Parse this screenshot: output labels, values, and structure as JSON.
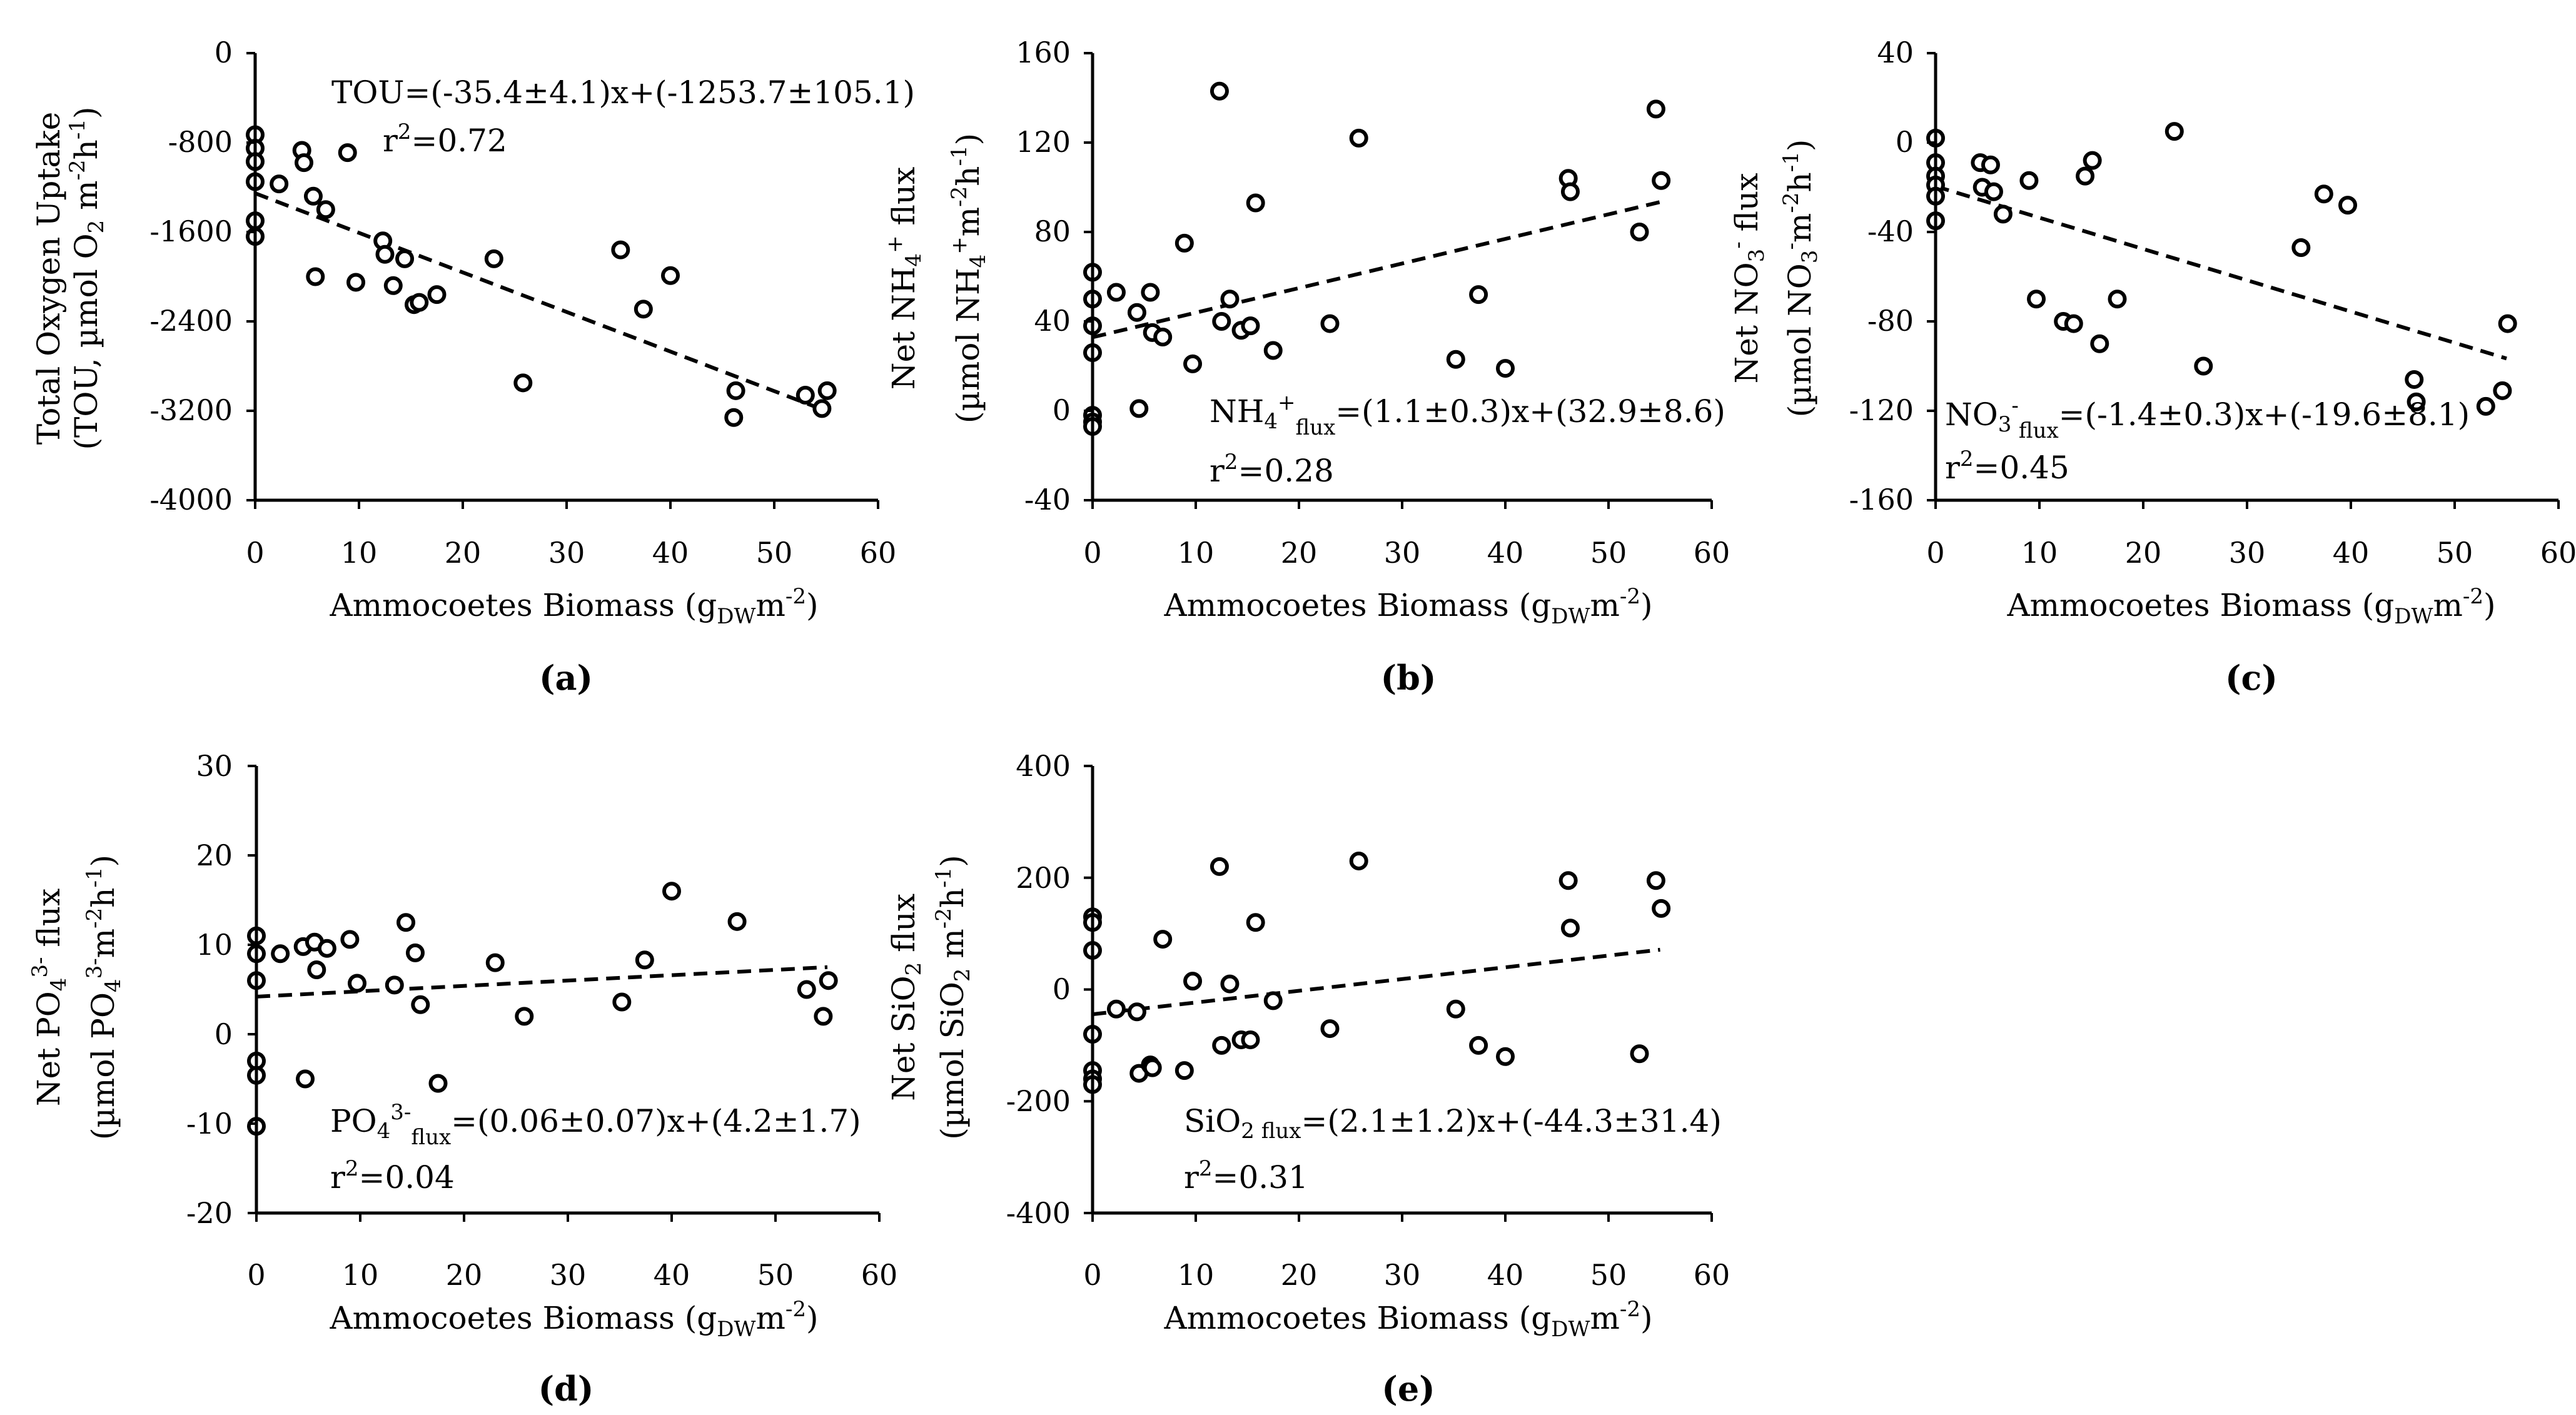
{
  "chart_data": [
    {
      "panel": "(a)",
      "type": "scatter",
      "xlabel": "Ammocoetes Biomass (gDWm-2)",
      "ylabel_line1": "Total Oxygen Uptake",
      "ylabel_line2": "(TOU, µmol O2 m-2h-1)",
      "xlim": [
        0,
        60
      ],
      "ylim": [
        -4000,
        0
      ],
      "xticks": [
        0,
        10,
        20,
        30,
        40,
        50,
        60
      ],
      "yticks": [
        0,
        -800,
        -1600,
        -2400,
        -3200,
        -4000
      ],
      "x": [
        0,
        0,
        0,
        0,
        0,
        0,
        2.3,
        4.5,
        4.7,
        5.6,
        5.8,
        6.8,
        8.9,
        9.7,
        12.3,
        12.5,
        13.3,
        14.4,
        15.3,
        15.8,
        17.5,
        23,
        25.8,
        35.2,
        37.4,
        40,
        46.1,
        46.3,
        53,
        54.6,
        55.1
      ],
      "y": [
        -730,
        -850,
        -970,
        -1150,
        -1500,
        -1640,
        -1170,
        -870,
        -980,
        -1280,
        -2000,
        -1400,
        -890,
        -2050,
        -1680,
        -1800,
        -2080,
        -1840,
        -2250,
        -2230,
        -2160,
        -1840,
        -2950,
        -1760,
        -2290,
        -1990,
        -3260,
        -3020,
        -3060,
        -3180,
        -3020
      ],
      "fit": {
        "slope": -35.4,
        "intercept": -1253.7,
        "x_range": [
          0,
          55
        ]
      },
      "equation": "TOU=(-35.4±4.1)x+(-1253.7±105.1)",
      "r2": "=0.72"
    },
    {
      "panel": "(b)",
      "type": "scatter",
      "xlabel": "Ammocoetes Biomass (gDWm-2)",
      "ylabel_line1": "Net NH4+ flux",
      "ylabel_line2": "(µmol NH4+m-2h-1)",
      "xlim": [
        0,
        60
      ],
      "ylim": [
        -40,
        160
      ],
      "xticks": [
        0,
        10,
        20,
        30,
        40,
        50,
        60
      ],
      "yticks": [
        160,
        120,
        80,
        40,
        0,
        -40
      ],
      "x": [
        0,
        0,
        0,
        0,
        0,
        0,
        0,
        2.3,
        4.3,
        4.5,
        5.6,
        5.8,
        6.8,
        8.9,
        9.7,
        12.3,
        12.5,
        13.3,
        14.4,
        15.3,
        15.8,
        17.5,
        23,
        25.8,
        35.2,
        37.4,
        40,
        46.1,
        46.3,
        53,
        54.6,
        55.1
      ],
      "y": [
        62,
        50,
        38,
        26,
        -2,
        -5,
        -7,
        53,
        44,
        1,
        53,
        35,
        33,
        75,
        21,
        143,
        40,
        50,
        36,
        38,
        93,
        27,
        39,
        122,
        23,
        52,
        19,
        104,
        98,
        80,
        135,
        103
      ],
      "fit": {
        "slope": 1.1,
        "intercept": 32.9,
        "x_range": [
          0,
          55
        ]
      },
      "equation": "NH4+flux=(1.1±0.3)x+(32.9±8.6)",
      "r2": "=0.28"
    },
    {
      "panel": "(c)",
      "type": "scatter",
      "xlabel": "Ammocoetes Biomass (gDWm-2)",
      "ylabel_line1": "Net NO3- flux",
      "ylabel_line2": "(µmol NO3-m-2h-1)",
      "xlim": [
        0,
        60
      ],
      "ylim": [
        -160,
        40
      ],
      "xticks": [
        0,
        10,
        20,
        30,
        40,
        50,
        60
      ],
      "yticks": [
        40,
        0,
        -40,
        -80,
        -120,
        -160
      ],
      "x": [
        0,
        0,
        0,
        0,
        0,
        0,
        4.3,
        4.5,
        5.3,
        5.6,
        6.5,
        9,
        9.7,
        12.3,
        13.3,
        14.4,
        15.1,
        15.8,
        17.5,
        23,
        25.8,
        35.2,
        37.4,
        39.7,
        46.1,
        46.3,
        53,
        54.6,
        55.1
      ],
      "y": [
        2,
        -9,
        -15,
        -19,
        -24,
        -35,
        -9,
        -20,
        -10,
        -22,
        -32,
        -17,
        -70,
        -80,
        -81,
        -15,
        -8,
        -90,
        -70,
        5,
        -100,
        -47,
        -23,
        -28,
        -106,
        -116,
        -118,
        -111,
        -81
      ],
      "fit": {
        "slope": -1.4,
        "intercept": -19.6,
        "x_range": [
          0,
          55
        ]
      },
      "equation": "NO3 flux=(-1.4±0.3)x+(-19.6±8.1)",
      "r2": "=0.45"
    },
    {
      "panel": "(d)",
      "type": "scatter",
      "xlabel": "Ammocoetes Biomass (gDWm-2)",
      "ylabel_line1": "Net PO43- flux",
      "ylabel_line2": "(µmol PO43-m-2h-1)",
      "xlim": [
        0,
        60
      ],
      "ylim": [
        -20,
        30
      ],
      "xticks": [
        0,
        10,
        20,
        30,
        40,
        50,
        60
      ],
      "yticks": [
        30,
        20,
        10,
        0,
        -10,
        -20
      ],
      "x": [
        0,
        0,
        0,
        0,
        0,
        0,
        2.3,
        4.5,
        4.7,
        5.6,
        5.8,
        6.8,
        9,
        9.7,
        13.3,
        14.4,
        15.3,
        15.8,
        17.5,
        23,
        25.8,
        35.2,
        37.4,
        40,
        46.3,
        53,
        54.6,
        55.1
      ],
      "y": [
        11,
        9,
        6,
        -3,
        -4.6,
        -10.3,
        9,
        9.8,
        -5,
        10.3,
        7.2,
        9.6,
        10.6,
        5.7,
        5.5,
        12.5,
        9.1,
        3.3,
        -5.5,
        8,
        2,
        3.6,
        8.3,
        16,
        12.6,
        5,
        2,
        6
      ],
      "fit": {
        "slope": 0.06,
        "intercept": 4.2,
        "x_range": [
          0,
          55
        ]
      },
      "equation": "PO43-flux=(0.06±0.07)x+(4.2±1.7)",
      "r2": "=0.04"
    },
    {
      "panel": "(e)",
      "type": "scatter",
      "xlabel": "Ammocoetes Biomass (gDWm-2)",
      "ylabel_line1": "Net SiO2 flux",
      "ylabel_line2": "(µmol SiO2 m-2h-1)",
      "xlim": [
        0,
        60
      ],
      "ylim": [
        -400,
        400
      ],
      "xticks": [
        0,
        10,
        20,
        30,
        40,
        50,
        60
      ],
      "yticks": [
        400,
        200,
        0,
        -200,
        -400
      ],
      "x": [
        0,
        0,
        0,
        0,
        0,
        0,
        0,
        2.3,
        4.3,
        4.5,
        5.6,
        5.8,
        6.8,
        8.9,
        9.7,
        12.3,
        12.5,
        13.3,
        14.4,
        15.3,
        15.8,
        17.5,
        23,
        25.8,
        35.2,
        37.4,
        40,
        46.1,
        46.3,
        53,
        54.6,
        55.1
      ],
      "y": [
        130,
        120,
        70,
        -80,
        -145,
        -160,
        -170,
        -35,
        -40,
        -150,
        -135,
        -140,
        90,
        -145,
        15,
        220,
        -100,
        10,
        -90,
        -90,
        120,
        -20,
        -70,
        230,
        -35,
        -100,
        -120,
        195,
        110,
        -115,
        195,
        145
      ],
      "fit": {
        "slope": 2.1,
        "intercept": -44.3,
        "x_range": [
          0,
          55
        ]
      },
      "equation": "SiO2 flux=(2.1±1.2)x+(-44.3±31.4)",
      "r2": "=0.31"
    }
  ]
}
